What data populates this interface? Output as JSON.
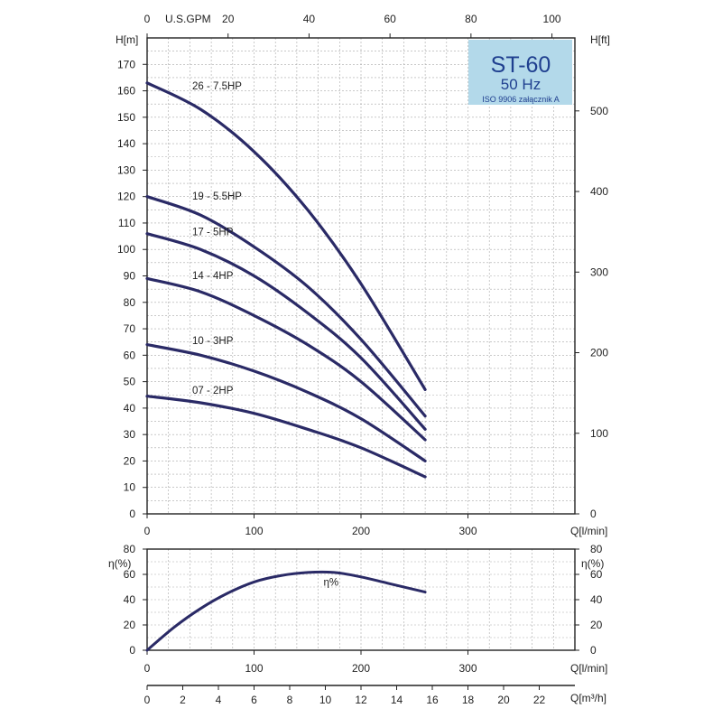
{
  "chart_data": [
    {
      "type": "line",
      "title": "ST-60",
      "badge": {
        "model": "ST-60",
        "frequency": "50 Hz",
        "standard": "ISO 9906 załącznik A"
      },
      "ylabel": "H[m]",
      "ylabel_right": "H[ft]",
      "xlabel": "Q[l/min]",
      "xlabel_top": "U.S.GPM",
      "xlim": [
        0,
        400
      ],
      "ylim": [
        0,
        180
      ],
      "xlim_top": [
        0,
        105.67
      ],
      "ylim_right": [
        0,
        590.55
      ],
      "x_ticks": [
        0,
        100,
        200,
        300
      ],
      "y_ticks": [
        0,
        10,
        20,
        30,
        40,
        50,
        60,
        70,
        80,
        90,
        100,
        110,
        120,
        130,
        140,
        150,
        160,
        170
      ],
      "top_ticks": [
        0,
        20,
        40,
        60,
        80,
        100
      ],
      "right_ticks": [
        0,
        100,
        200,
        300,
        400,
        500
      ],
      "grid": true,
      "colors": {
        "curve": "#2a2a66",
        "badge": "#b3d9ea",
        "badge_text": "#1f3f8f"
      },
      "series": [
        {
          "name": "26 - 7.5HP",
          "x": [
            0,
            50,
            100,
            150,
            200,
            260
          ],
          "y": [
            163,
            153,
            137,
            115,
            87,
            47
          ]
        },
        {
          "name": "19 - 5.5HP",
          "x": [
            0,
            50,
            100,
            150,
            200,
            260
          ],
          "y": [
            120,
            113,
            101,
            86,
            66,
            37
          ]
        },
        {
          "name": "17 - 5HP",
          "x": [
            0,
            50,
            100,
            150,
            200,
            260
          ],
          "y": [
            106,
            100,
            90,
            76,
            59,
            32
          ]
        },
        {
          "name": "14 - 4HP",
          "x": [
            0,
            50,
            100,
            150,
            200,
            260
          ],
          "y": [
            89,
            84,
            75,
            64,
            50,
            28
          ]
        },
        {
          "name": "10 - 3HP",
          "x": [
            0,
            50,
            100,
            150,
            200,
            260
          ],
          "y": [
            64,
            60,
            54,
            46,
            36,
            20
          ]
        },
        {
          "name": "07 - 2HP",
          "x": [
            0,
            50,
            100,
            150,
            200,
            260
          ],
          "y": [
            44.5,
            42,
            38,
            32,
            25,
            14
          ]
        }
      ]
    },
    {
      "type": "line",
      "ylabel": "η(%)",
      "ylabel_right": "η(%)",
      "xlabel": "Q[l/min]",
      "xlabel_bottom": "Q[m³/h]",
      "xlim": [
        0,
        400
      ],
      "ylim": [
        0,
        80
      ],
      "x_ticks": [
        0,
        100,
        200,
        300
      ],
      "y_ticks": [
        0,
        20,
        40,
        60,
        80
      ],
      "bottom_ticks": [
        0,
        2,
        4,
        6,
        8,
        10,
        12,
        14,
        16,
        18,
        20,
        22
      ],
      "xlim_bottom": [
        0,
        24
      ],
      "grid": true,
      "series": [
        {
          "name": "η%",
          "x": [
            0,
            25,
            50,
            75,
            100,
            125,
            150,
            175,
            200,
            225,
            260
          ],
          "y": [
            0,
            18,
            33,
            45,
            54,
            59,
            61.5,
            61.5,
            58,
            53,
            46
          ]
        }
      ]
    }
  ]
}
